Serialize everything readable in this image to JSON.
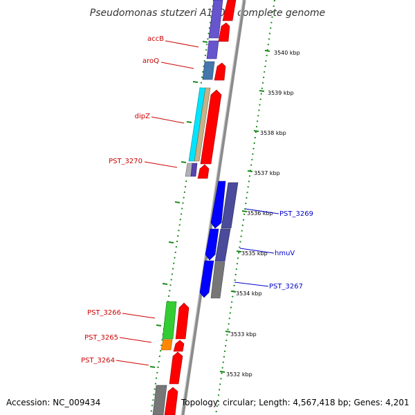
{
  "title": "Pseudomonas stutzeri A1501, complete genome",
  "footer": {
    "accession": "Accession: NC_009434",
    "summary": "Topology: circular; Length: 4,567,418 bp; Genes: 4,201"
  },
  "scale_labels": [
    "3540 kbp",
    "3539 kbp",
    "3538 kbp",
    "3537 kbp",
    "3536 kbp",
    "3535 kbp",
    "3534 kbp",
    "3533 kbp",
    "3532 kbp"
  ],
  "gene_labels": [
    {
      "text": "accB",
      "color": "#cc0000"
    },
    {
      "text": "aroQ",
      "color": "#cc0000"
    },
    {
      "text": "dipZ",
      "color": "#cc0000"
    },
    {
      "text": "PST_3270",
      "color": "#cc0000"
    },
    {
      "text": "PST_3269",
      "color": "#0000cc"
    },
    {
      "text": "hmuV",
      "color": "#0000cc"
    },
    {
      "text": "PST_3267",
      "color": "#0000cc"
    },
    {
      "text": "PST_3266",
      "color": "#cc0000"
    },
    {
      "text": "PST_3265",
      "color": "#cc0000"
    },
    {
      "text": "PST_3264",
      "color": "#cc0000"
    }
  ],
  "colors": {
    "cds": "#ff0000",
    "blue_cds": "#0000ff",
    "backbone": "#8c8c8c",
    "ticks": "#1a8a1a"
  }
}
